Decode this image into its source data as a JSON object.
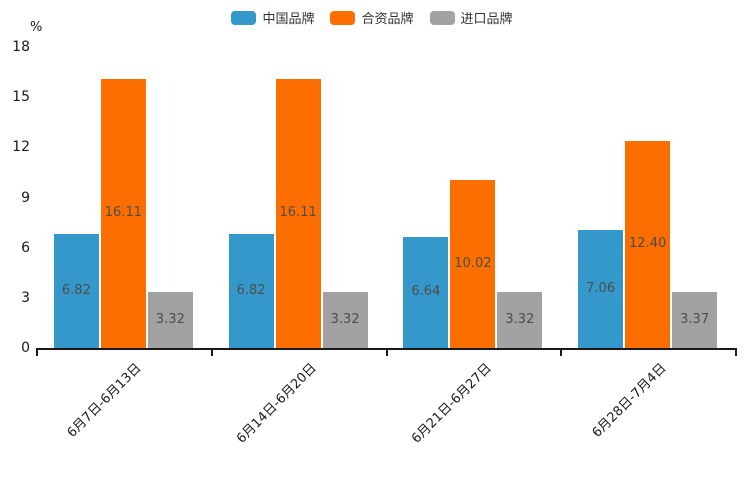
{
  "chart_data": {
    "type": "bar",
    "title": "",
    "unit_label": "%",
    "categories": [
      "6月7日-6月13日",
      "6月14日-6月20日",
      "6月21日-6月27日",
      "6月28日-7月4日"
    ],
    "series": [
      {
        "name": "中国品牌",
        "color": "#3498cb",
        "values": [
          6.82,
          6.82,
          6.64,
          7.06
        ]
      },
      {
        "name": "合资品牌",
        "color": "#fd6e01",
        "values": [
          16.11,
          16.11,
          10.02,
          12.4
        ]
      },
      {
        "name": "进口品牌",
        "color": "#a2a2a2",
        "values": [
          3.32,
          3.32,
          3.32,
          3.37
        ]
      }
    ],
    "ylim": [
      0,
      18
    ],
    "yticks": [
      0,
      3,
      6,
      9,
      12,
      15,
      18
    ],
    "legend_position": "top",
    "grid": false,
    "value_label_color": "#4d4d4d",
    "axis_color": "#1a1a1a"
  }
}
